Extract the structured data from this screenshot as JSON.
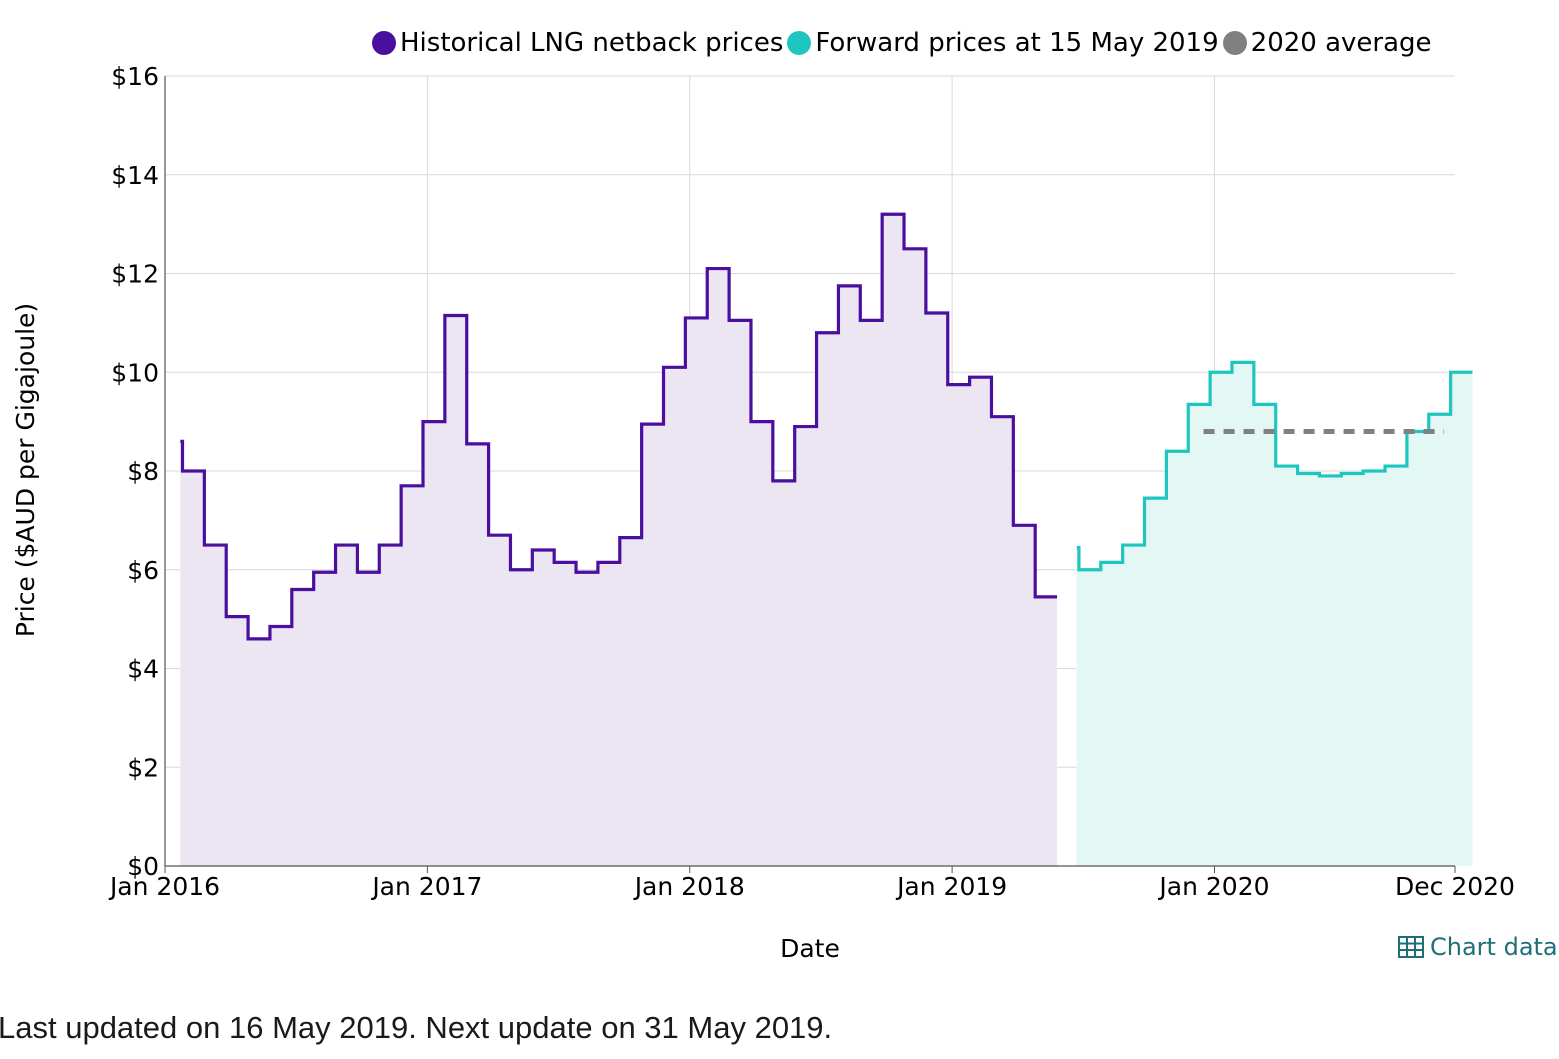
{
  "chart_data": {
    "type": "line",
    "step": true,
    "xlabel": "Date",
    "ylabel": "Price ($AUD per Gigajoule)",
    "ylim": [
      0,
      16
    ],
    "y_ticks": [
      0,
      2,
      4,
      6,
      8,
      10,
      12,
      14,
      16
    ],
    "y_tick_labels": [
      "$0",
      "$2",
      "$4",
      "$6",
      "$8",
      "$10",
      "$12",
      "$14",
      "$16"
    ],
    "x_domain": [
      "Jan 2016",
      "Dec 2020"
    ],
    "x_ticks": [
      {
        "label": "Jan 2016",
        "month": 0
      },
      {
        "label": "Jan 2017",
        "month": 12
      },
      {
        "label": "Jan 2018",
        "month": 24
      },
      {
        "label": "Jan 2019",
        "month": 36
      },
      {
        "label": "Jan 2020",
        "month": 48
      },
      {
        "label": "Dec 2020",
        "month": 59
      }
    ],
    "grid": true,
    "legend_position": "top",
    "series": [
      {
        "name": "Historical LNG netback prices",
        "color": "#4b0fa0",
        "fill": "#ece6f3",
        "start": "Jan 2016",
        "values": [
          8.6,
          8.0,
          6.5,
          5.05,
          4.6,
          4.85,
          5.6,
          5.95,
          6.5,
          5.95,
          6.5,
          7.7,
          9.0,
          11.15,
          8.55,
          6.7,
          6.0,
          6.4,
          6.15,
          5.95,
          6.15,
          6.65,
          8.95,
          10.1,
          11.1,
          12.1,
          11.05,
          9.0,
          7.8,
          8.9,
          10.8,
          11.75,
          11.05,
          13.2,
          12.5,
          11.2,
          9.75,
          9.9,
          9.1,
          6.9,
          5.45
        ]
      },
      {
        "name": "Forward prices at 15 May 2019",
        "color": "#1fc6c0",
        "fill": "#e3f7f5",
        "start": "Jun 2019",
        "values": [
          6.45,
          6.0,
          6.15,
          6.5,
          7.45,
          8.4,
          9.35,
          10.0,
          10.2,
          9.35,
          8.1,
          7.95,
          7.9,
          7.95,
          8.0,
          8.1,
          8.8,
          9.15,
          10.0
        ]
      },
      {
        "name": "2020 average",
        "color": "#808080",
        "value": 8.8,
        "from": "Jan 2020",
        "to": "Dec 2020"
      }
    ]
  },
  "legend": [
    {
      "label": "Historical LNG netback prices",
      "color": "#4b0fa0"
    },
    {
      "label": "Forward prices at 15 May 2019",
      "color": "#1fc6c0"
    },
    {
      "label": "2020 average",
      "color": "#808080"
    }
  ],
  "chart_data_link": {
    "label": "Chart data",
    "color": "#1f6f7a",
    "icon": "table-icon"
  },
  "footer": {
    "text": "Last updated on 16 May 2019. Next update on 31 May 2019."
  }
}
